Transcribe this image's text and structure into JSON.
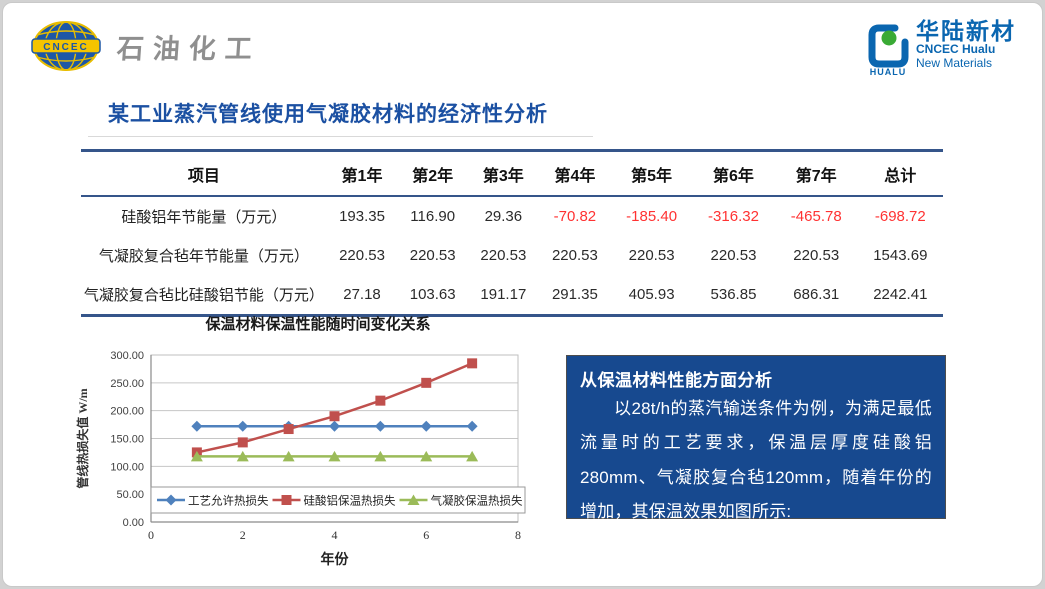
{
  "header": {
    "left_logo": {
      "badge": "CNCEC",
      "text": "石油化工"
    },
    "right_logo": {
      "cn": "华陆新材",
      "en1": "CNCEC Hualu",
      "en2": "New Materials",
      "icon_label": "HUALU"
    }
  },
  "title": "某工业蒸汽管线使用气凝胶材料的经济性分析",
  "table": {
    "columns": [
      "项目",
      "第1年",
      "第2年",
      "第3年",
      "第4年",
      "第5年",
      "第6年",
      "第7年",
      "总计"
    ],
    "rows": [
      {
        "label": "硅酸铝年节能量（万元）",
        "values": [
          "193.35",
          "116.90",
          "29.36",
          "-70.82",
          "-185.40",
          "-316.32",
          "-465.78",
          "-698.72"
        ]
      },
      {
        "label": "气凝胶复合毡年节能量（万元）",
        "values": [
          "220.53",
          "220.53",
          "220.53",
          "220.53",
          "220.53",
          "220.53",
          "220.53",
          "1543.69"
        ]
      },
      {
        "label": "气凝胶复合毡比硅酸铝节能（万元）",
        "values": [
          "27.18",
          "103.63",
          "191.17",
          "291.35",
          "405.93",
          "536.85",
          "686.31",
          "2242.41"
        ]
      }
    ]
  },
  "chart_data": {
    "type": "line",
    "title": "保温材料保温性能随时间变化关系",
    "xlabel": "年份",
    "ylabel": "管线热损失值 W/m",
    "x": [
      1,
      2,
      3,
      4,
      5,
      6,
      7
    ],
    "xlim": [
      0,
      8
    ],
    "ylim": [
      0,
      300
    ],
    "x_ticks": [
      0,
      2,
      4,
      6,
      8
    ],
    "y_ticks": [
      "0.00",
      "50.00",
      "100.00",
      "150.00",
      "200.00",
      "250.00",
      "300.00"
    ],
    "grid": true,
    "legend_position": "bottom-inside",
    "series": [
      {
        "name": "工艺允许热损失",
        "color": "#4F81BD",
        "marker": "diamond",
        "values": [
          172,
          172,
          172,
          172,
          172,
          172,
          172
        ]
      },
      {
        "name": "硅酸铝保温热损失",
        "color": "#C0504D",
        "marker": "square",
        "values": [
          125,
          143,
          167,
          190,
          218,
          250,
          285
        ]
      },
      {
        "name": "气凝胶保温热损失",
        "color": "#9BBB59",
        "marker": "triangle",
        "values": [
          118,
          118,
          118,
          118,
          118,
          118,
          118
        ]
      }
    ]
  },
  "info_box": {
    "heading": "从保温材料性能方面分析",
    "body": "以28t/h的蒸汽输送条件为例，为满足最低流量时的工艺要求，保温层厚度硅酸铝280mm、气凝胶复合毡120mm，随着年份的增加，其保温效果如图所示:"
  },
  "colors": {
    "title_blue": "#1b50a2",
    "table_line": "#35558a",
    "negative_red": "#ff3232",
    "info_box_bg": "#17498f",
    "series_blue": "#4F81BD",
    "series_red": "#C0504D",
    "series_green": "#9BBB59"
  }
}
